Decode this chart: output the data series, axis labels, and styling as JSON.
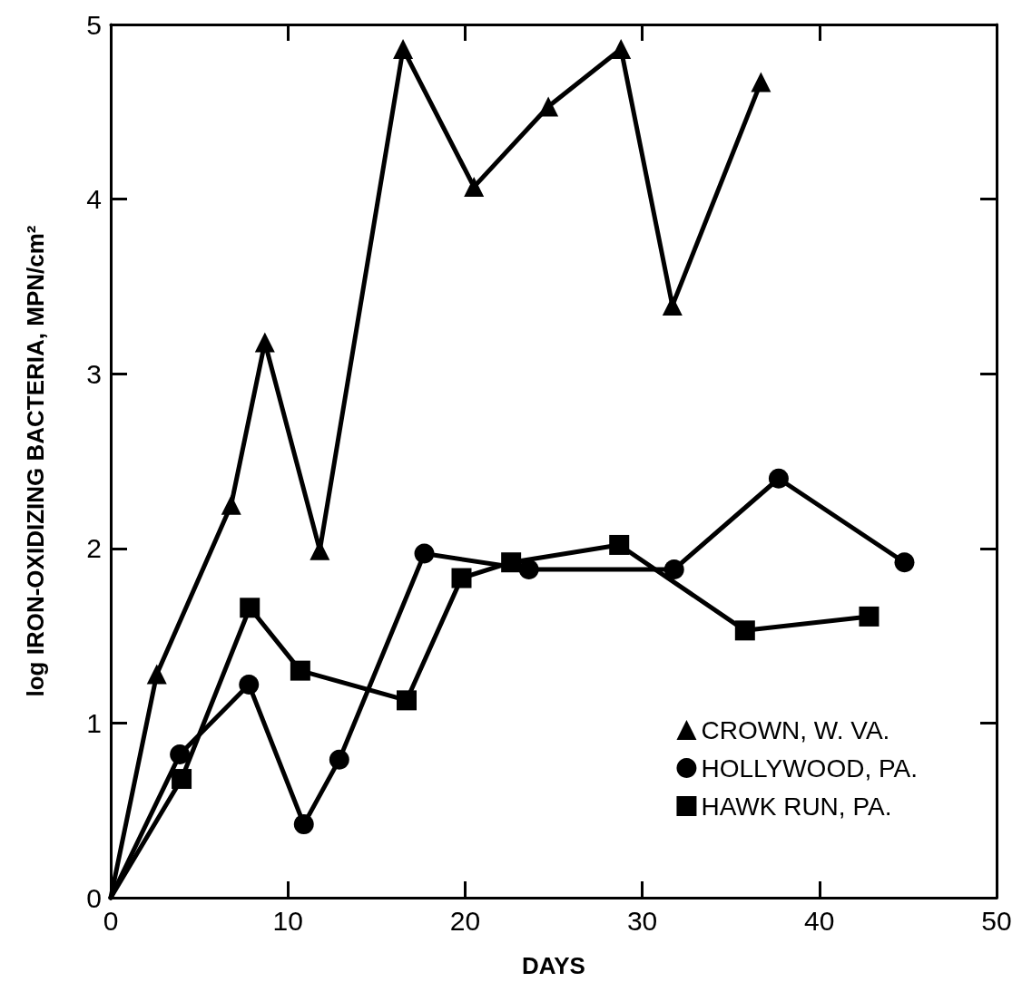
{
  "chart_data": {
    "type": "line",
    "xlabel": "DAYS",
    "ylabel": "log IRON-OXIDIZING BACTERIA, MPN/cm²",
    "xlim": [
      0,
      50
    ],
    "xticks": [
      0,
      10,
      20,
      30,
      40,
      50
    ],
    "ylim": [
      0,
      5
    ],
    "yticks": [
      0,
      1,
      2,
      3,
      4,
      5
    ],
    "grid": false,
    "legend": "bottom right",
    "line_style": "solid",
    "series": [
      {
        "name": "CROWN, W. VA.",
        "color": "#000000",
        "marker": "triangle",
        "x": [
          0,
          2.6,
          6.8,
          8.7,
          11.8,
          16.5,
          20.5,
          24.7,
          28.8,
          31.7,
          36.7
        ],
        "values": [
          0,
          1.28,
          2.25,
          3.18,
          1.99,
          4.86,
          4.07,
          4.53,
          4.86,
          3.39,
          4.67
        ]
      },
      {
        "name": "HOLLYWOOD, PA.",
        "color": "#000000",
        "marker": "circle",
        "x": [
          0,
          3.9,
          7.8,
          10.9,
          12.9,
          17.7,
          23.6,
          31.8,
          37.7,
          44.8
        ],
        "values": [
          0,
          0.82,
          1.22,
          0.42,
          0.79,
          1.97,
          1.88,
          1.88,
          2.4,
          1.92
        ]
      },
      {
        "name": "HAWK RUN, PA.",
        "color": "#000000",
        "marker": "square",
        "x": [
          0,
          4.0,
          7.85,
          10.7,
          16.7,
          19.8,
          22.6,
          28.7,
          35.8,
          42.8
        ],
        "values": [
          0,
          0.68,
          1.66,
          1.3,
          1.13,
          1.83,
          1.92,
          2.02,
          1.53,
          1.61
        ]
      }
    ]
  }
}
